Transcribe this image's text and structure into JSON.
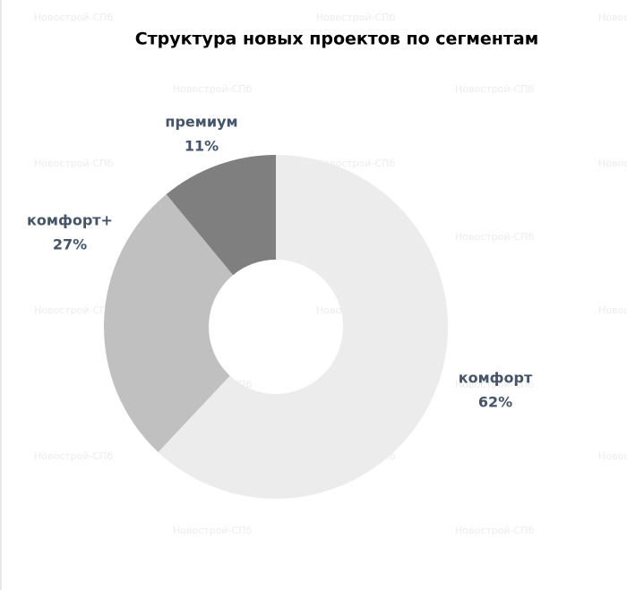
{
  "chart_data": {
    "type": "donut",
    "title": "Структура новых проектов по сегментам",
    "categories": [
      "комфорт",
      "комфорт+",
      "премиум"
    ],
    "values": [
      62,
      27,
      11
    ],
    "value_labels": [
      "62%",
      "27%",
      "11%"
    ],
    "colors": [
      "#ececec",
      "#c0c0c0",
      "#7f7f7f"
    ],
    "watermark": "Новострой-СПб"
  }
}
